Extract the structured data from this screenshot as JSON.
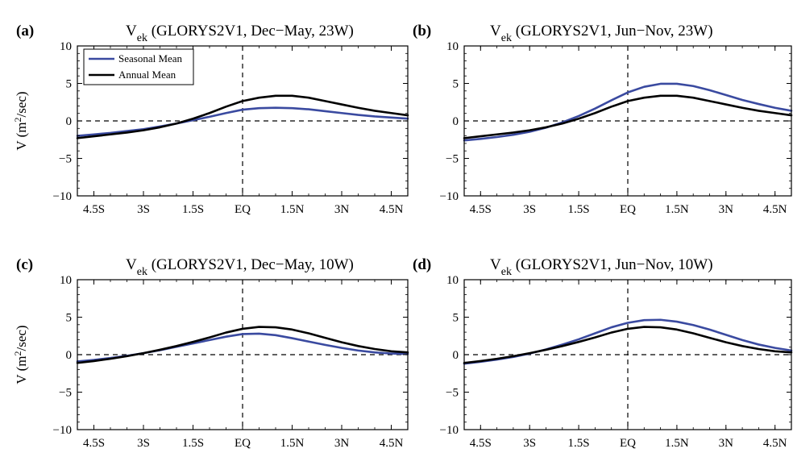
{
  "colors": {
    "seasonal": "#3a4aa0",
    "annual": "#000000",
    "axis": "#000000"
  },
  "legend": {
    "seasonal_label": "Seasonal Mean",
    "annual_label": "Annual Mean"
  },
  "chart_data": [
    {
      "type": "line",
      "letter": "(a)",
      "title": "V",
      "title_sub": "ek",
      "title_rest": " (GLORYS2V1, Dec−May, 23W)",
      "ylabel": "V (m",
      "ylabel_sup": "2",
      "ylabel_rest": "/sec)",
      "xlim": [
        -5,
        5
      ],
      "ylim": [
        -10,
        10
      ],
      "xticks": [
        -4.5,
        -3,
        -1.5,
        0,
        1.5,
        3,
        4.5
      ],
      "xtick_labels": [
        "4.5S",
        "3S",
        "1.5S",
        "EQ",
        "1.5N",
        "3N",
        "4.5N"
      ],
      "yticks": [
        -10,
        -5,
        0,
        5,
        10
      ],
      "ytick_labels": [
        "−10",
        "−5",
        "0",
        "5",
        "10"
      ],
      "show_legend": true,
      "x": [
        -5,
        -4.5,
        -4,
        -3.5,
        -3,
        -2.5,
        -2,
        -1.5,
        -1,
        -0.5,
        0,
        0.5,
        1,
        1.5,
        2,
        2.5,
        3,
        3.5,
        4,
        4.5,
        5
      ],
      "series": [
        {
          "name": "Seasonal Mean",
          "values": [
            -2.0,
            -1.8,
            -1.6,
            -1.35,
            -1.1,
            -0.75,
            -0.35,
            0.1,
            0.55,
            1.05,
            1.5,
            1.7,
            1.75,
            1.7,
            1.55,
            1.3,
            1.05,
            0.8,
            0.6,
            0.45,
            0.3
          ]
        },
        {
          "name": "Annual Mean",
          "values": [
            -2.3,
            -2.05,
            -1.8,
            -1.55,
            -1.25,
            -0.85,
            -0.35,
            0.3,
            1.05,
            1.9,
            2.65,
            3.1,
            3.35,
            3.35,
            3.1,
            2.65,
            2.2,
            1.75,
            1.35,
            1.05,
            0.75
          ]
        }
      ]
    },
    {
      "type": "line",
      "letter": "(b)",
      "title": "V",
      "title_sub": "ek",
      "title_rest": " (GLORYS2V1, Jun−Nov, 23W)",
      "ylabel": "",
      "ylabel_sup": "",
      "ylabel_rest": "",
      "xlim": [
        -5,
        5
      ],
      "ylim": [
        -10,
        10
      ],
      "xticks": [
        -4.5,
        -3,
        -1.5,
        0,
        1.5,
        3,
        4.5
      ],
      "xtick_labels": [
        "4.5S",
        "3S",
        "1.5S",
        "EQ",
        "1.5N",
        "3N",
        "4.5N"
      ],
      "yticks": [
        -10,
        -5,
        0,
        5,
        10
      ],
      "ytick_labels": [
        "−10",
        "−5",
        "0",
        "5",
        "10"
      ],
      "show_legend": false,
      "x": [
        -5,
        -4.5,
        -4,
        -3.5,
        -3,
        -2.5,
        -2,
        -1.5,
        -1,
        -0.5,
        0,
        0.5,
        1,
        1.5,
        2,
        2.5,
        3,
        3.5,
        4,
        4.5,
        5
      ],
      "series": [
        {
          "name": "Seasonal Mean",
          "values": [
            -2.6,
            -2.4,
            -2.15,
            -1.85,
            -1.45,
            -0.9,
            -0.2,
            0.65,
            1.65,
            2.75,
            3.8,
            4.55,
            4.95,
            4.95,
            4.65,
            4.1,
            3.45,
            2.8,
            2.25,
            1.75,
            1.35
          ]
        },
        {
          "name": "Annual Mean",
          "values": [
            -2.3,
            -2.05,
            -1.8,
            -1.55,
            -1.25,
            -0.85,
            -0.35,
            0.3,
            1.05,
            1.9,
            2.65,
            3.1,
            3.35,
            3.35,
            3.1,
            2.65,
            2.2,
            1.75,
            1.35,
            1.05,
            0.75
          ]
        }
      ]
    },
    {
      "type": "line",
      "letter": "(c)",
      "title": "V",
      "title_sub": "ek",
      "title_rest": " (GLORYS2V1, Dec−May, 10W)",
      "ylabel": "V (m",
      "ylabel_sup": "2",
      "ylabel_rest": "/sec)",
      "xlim": [
        -5,
        5
      ],
      "ylim": [
        -10,
        10
      ],
      "xticks": [
        -4.5,
        -3,
        -1.5,
        0,
        1.5,
        3,
        4.5
      ],
      "xtick_labels": [
        "4.5S",
        "3S",
        "1.5S",
        "EQ",
        "1.5N",
        "3N",
        "4.5N"
      ],
      "yticks": [
        -10,
        -5,
        0,
        5,
        10
      ],
      "ytick_labels": [
        "−10",
        "−5",
        "0",
        "5",
        "10"
      ],
      "show_legend": false,
      "x": [
        -5,
        -4.5,
        -4,
        -3.5,
        -3,
        -2.5,
        -2,
        -1.5,
        -1,
        -0.5,
        0,
        0.5,
        1,
        1.5,
        2,
        2.5,
        3,
        3.5,
        4,
        4.5,
        5
      ],
      "series": [
        {
          "name": "Seasonal Mean",
          "values": [
            -0.9,
            -0.7,
            -0.45,
            -0.15,
            0.2,
            0.6,
            1.05,
            1.5,
            1.95,
            2.4,
            2.75,
            2.8,
            2.6,
            2.2,
            1.75,
            1.3,
            0.9,
            0.55,
            0.3,
            0.15,
            0.1
          ]
        },
        {
          "name": "Annual Mean",
          "values": [
            -1.1,
            -0.85,
            -0.55,
            -0.2,
            0.2,
            0.65,
            1.15,
            1.7,
            2.3,
            2.95,
            3.45,
            3.7,
            3.65,
            3.35,
            2.85,
            2.25,
            1.65,
            1.15,
            0.75,
            0.45,
            0.3
          ]
        }
      ]
    },
    {
      "type": "line",
      "letter": "(d)",
      "title": "V",
      "title_sub": "ek",
      "title_rest": " (GLORYS2V1, Jun−Nov, 10W)",
      "ylabel": "",
      "ylabel_sup": "",
      "ylabel_rest": "",
      "xlim": [
        -5,
        5
      ],
      "ylim": [
        -10,
        10
      ],
      "xticks": [
        -4.5,
        -3,
        -1.5,
        0,
        1.5,
        3,
        4.5
      ],
      "xtick_labels": [
        "4.5S",
        "3S",
        "1.5S",
        "EQ",
        "1.5N",
        "3N",
        "4.5N"
      ],
      "yticks": [
        -10,
        -5,
        0,
        5,
        10
      ],
      "ytick_labels": [
        "−10",
        "−5",
        "0",
        "5",
        "10"
      ],
      "show_legend": false,
      "x": [
        -5,
        -4.5,
        -4,
        -3.5,
        -3,
        -2.5,
        -2,
        -1.5,
        -1,
        -0.5,
        0,
        0.5,
        1,
        1.5,
        2,
        2.5,
        3,
        3.5,
        4,
        4.5,
        5
      ],
      "series": [
        {
          "name": "Seasonal Mean",
          "values": [
            -1.2,
            -0.95,
            -0.65,
            -0.3,
            0.15,
            0.7,
            1.35,
            2.05,
            2.85,
            3.65,
            4.25,
            4.6,
            4.65,
            4.4,
            3.95,
            3.35,
            2.65,
            1.95,
            1.35,
            0.9,
            0.55
          ]
        },
        {
          "name": "Annual Mean",
          "values": [
            -1.1,
            -0.85,
            -0.55,
            -0.2,
            0.2,
            0.65,
            1.15,
            1.7,
            2.3,
            2.95,
            3.45,
            3.7,
            3.65,
            3.35,
            2.85,
            2.25,
            1.65,
            1.15,
            0.75,
            0.45,
            0.3
          ]
        }
      ]
    }
  ]
}
